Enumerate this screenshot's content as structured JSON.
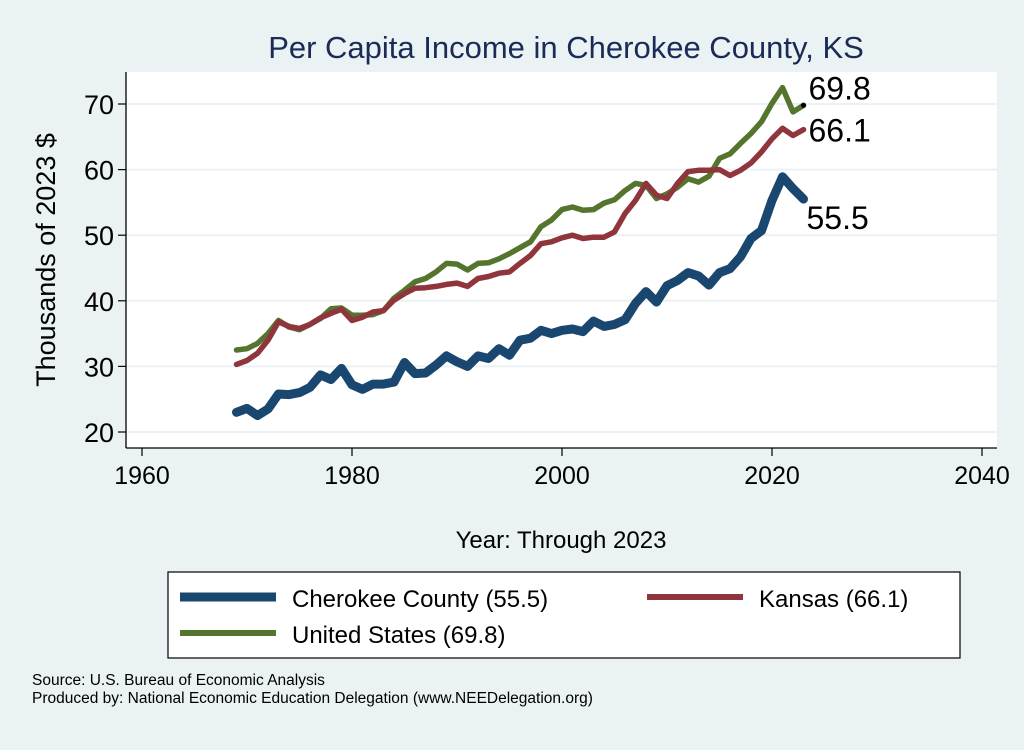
{
  "chart_data": {
    "type": "line",
    "title": "Per Capita Income in Cherokee County, KS",
    "xlabel": "Year: Through 2023",
    "ylabel": "Thousands of 2023 $",
    "xlim": [
      1960,
      2040
    ],
    "ylim": [
      20,
      75
    ],
    "x_ticks": [
      1960,
      1980,
      2000,
      2020,
      2040
    ],
    "y_ticks": [
      20,
      30,
      40,
      50,
      60,
      70
    ],
    "grid": "horizontal",
    "legend_position": "bottom",
    "x": [
      1969,
      1970,
      1971,
      1972,
      1973,
      1974,
      1975,
      1976,
      1977,
      1978,
      1979,
      1980,
      1981,
      1982,
      1983,
      1984,
      1985,
      1986,
      1987,
      1988,
      1989,
      1990,
      1991,
      1992,
      1993,
      1994,
      1995,
      1996,
      1997,
      1998,
      1999,
      2000,
      2001,
      2002,
      2003,
      2004,
      2005,
      2006,
      2007,
      2008,
      2009,
      2010,
      2011,
      2012,
      2013,
      2014,
      2015,
      2016,
      2017,
      2018,
      2019,
      2020,
      2021,
      2022,
      2023
    ],
    "series": [
      {
        "name": "Cherokee County",
        "legend_label": "Cherokee County (55.5)",
        "end_label": "55.5",
        "color": "#1a476f",
        "values": [
          23.0,
          23.6,
          22.5,
          23.5,
          25.8,
          25.7,
          26.0,
          26.8,
          28.7,
          28.0,
          29.7,
          27.2,
          26.5,
          27.3,
          27.3,
          27.6,
          30.6,
          28.9,
          29.0,
          30.2,
          31.6,
          30.7,
          30.0,
          31.6,
          31.2,
          32.7,
          31.7,
          34.0,
          34.3,
          35.5,
          35.0,
          35.5,
          35.7,
          35.3,
          36.9,
          36.1,
          36.4,
          37.1,
          39.6,
          41.4,
          39.8,
          42.3,
          43.1,
          44.3,
          43.8,
          42.4,
          44.3,
          44.9,
          46.7,
          49.5,
          50.7,
          55.3,
          58.9,
          57.1,
          55.5
        ]
      },
      {
        "name": "Kansas",
        "legend_label": "Kansas (66.1)",
        "end_label": "66.1",
        "color": "#90353b",
        "values": [
          30.3,
          30.9,
          32.0,
          34.0,
          36.8,
          36.1,
          35.8,
          36.4,
          37.4,
          38.1,
          38.7,
          37.0,
          37.5,
          38.3,
          38.5,
          40.1,
          41.1,
          41.9,
          42.0,
          42.2,
          42.5,
          42.7,
          42.2,
          43.4,
          43.7,
          44.2,
          44.4,
          45.7,
          46.9,
          48.7,
          49.0,
          49.6,
          50.0,
          49.5,
          49.7,
          49.7,
          50.5,
          53.3,
          55.3,
          57.9,
          56.1,
          55.6,
          57.9,
          59.7,
          59.9,
          59.9,
          60.0,
          59.1,
          59.9,
          61.0,
          62.7,
          64.7,
          66.3,
          65.2,
          66.1
        ]
      },
      {
        "name": "United States",
        "legend_label": "United States (69.8)",
        "end_label": "69.8",
        "color": "#55752f",
        "values": [
          32.5,
          32.7,
          33.5,
          35.0,
          37.0,
          36.0,
          35.6,
          36.4,
          37.3,
          38.8,
          38.9,
          37.8,
          37.8,
          37.9,
          38.5,
          40.4,
          41.6,
          42.9,
          43.4,
          44.4,
          45.7,
          45.6,
          44.7,
          45.7,
          45.8,
          46.4,
          47.2,
          48.1,
          49.0,
          51.3,
          52.3,
          53.9,
          54.3,
          53.8,
          53.9,
          54.9,
          55.4,
          56.8,
          57.9,
          57.6,
          55.6,
          56.3,
          57.3,
          58.6,
          58.1,
          59.0,
          61.7,
          62.4,
          64.0,
          65.5,
          67.3,
          70.1,
          72.5,
          68.8,
          69.8
        ]
      }
    ],
    "source": "Source: U.S. Bureau of Economic Analysis",
    "producer": "Produced by: National Economic Education Delegation (www.NEEDelegation.org)"
  },
  "colors": {
    "background": "#eaf2f3",
    "plot_background": "#ffffff",
    "title": "#1a2b57",
    "gridline": "#eaf2f3"
  }
}
